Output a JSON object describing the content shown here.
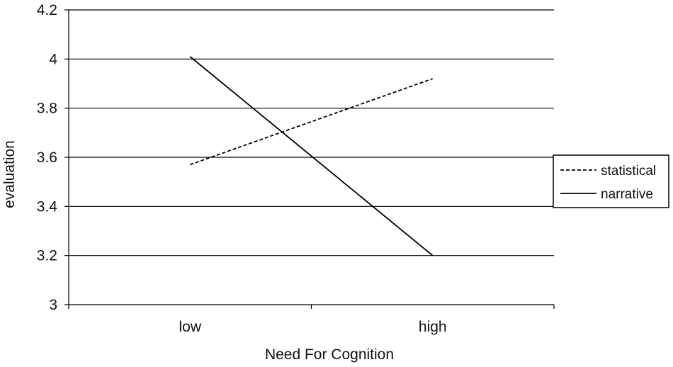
{
  "chart_data": {
    "type": "line",
    "title": "",
    "xlabel": "Need For Cognition",
    "ylabel": "evaluation",
    "categories": [
      "low",
      "high"
    ],
    "ylim": [
      3,
      4.2
    ],
    "yticks": [
      "3",
      "3.2",
      "3.4",
      "3.6",
      "3.8",
      "4",
      "4.2"
    ],
    "grid": true,
    "legend_position": "right",
    "series": [
      {
        "name": "statistical",
        "values": [
          3.57,
          3.92
        ],
        "style": "dashed",
        "color": "#000000"
      },
      {
        "name": "narrative",
        "values": [
          4.01,
          3.2
        ],
        "style": "solid",
        "color": "#000000"
      }
    ]
  }
}
